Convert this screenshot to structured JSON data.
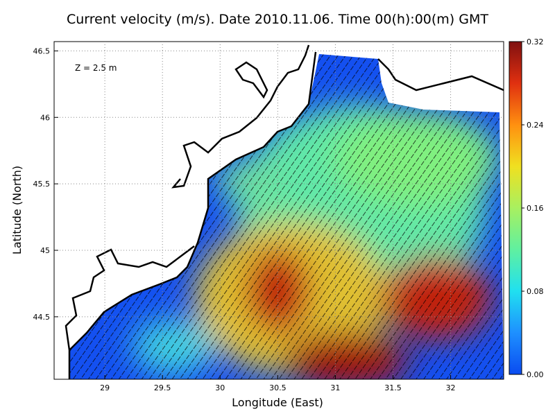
{
  "chart_data": {
    "type": "field",
    "title": "Current velocity (m/s). Date 2010.11.06. Time 00(h):00(m) GMT",
    "annotation": "Z = 2.5 m",
    "x_label": "Longitude (East)",
    "y_label": "Latitude (North)",
    "xlim": [
      28.56,
      32.46
    ],
    "xticks": [
      29,
      29.5,
      30,
      30.5,
      31,
      31.5,
      32
    ],
    "ylim": [
      44.03,
      46.57
    ],
    "yticks": [
      44.5,
      45,
      45.5,
      46,
      46.5
    ],
    "grid": true,
    "colorbar": {
      "lim": [
        0,
        0.32
      ],
      "ticks": [
        {
          "value": 0,
          "label": "0.00"
        },
        {
          "value": 0.08,
          "label": "0.08"
        },
        {
          "value": 0.16,
          "label": "0.16"
        },
        {
          "value": 0.24,
          "label": "0.24"
        },
        {
          "value": 0.32,
          "label": "0.32"
        }
      ],
      "colors": [
        "#0a4bf0",
        "#1e90ff",
        "#20e0f0",
        "#60f0a0",
        "#a8f060",
        "#f0e020",
        "#ff9010",
        "#e03010",
        "#801010"
      ]
    }
  }
}
